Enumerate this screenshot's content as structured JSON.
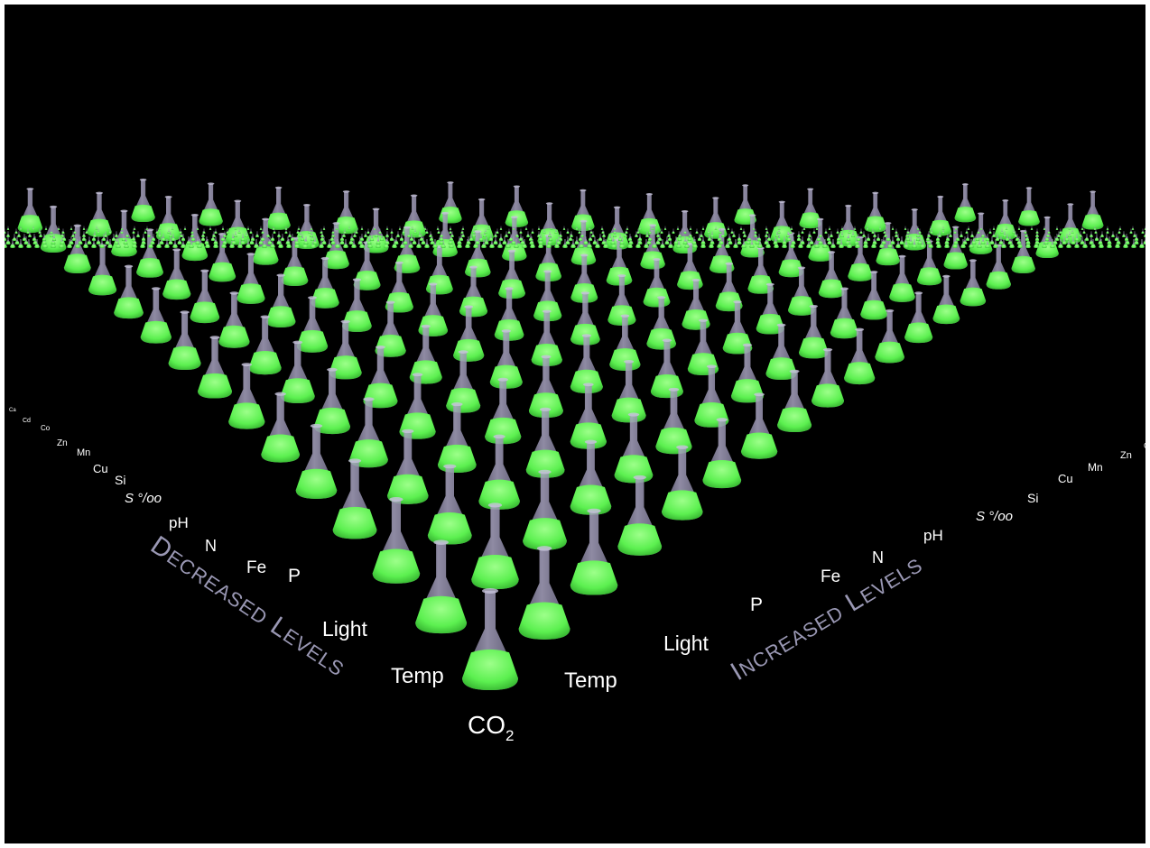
{
  "diagram": {
    "left_axis": {
      "title_initial_1": "D",
      "title_rest_1": "ECREASED",
      "title_initial_2": "L",
      "title_rest_2": "EVELS",
      "labels": [
        "Temp",
        "Light",
        "P",
        "Fe",
        "N",
        "pH",
        "S °/oo",
        "Si",
        "Cu",
        "Mn",
        "Zn",
        "Co",
        "Cd",
        "Ca"
      ]
    },
    "right_axis": {
      "title_initial_1": "I",
      "title_rest_1": "NCREASED",
      "title_initial_2": "L",
      "title_rest_2": "EVELS",
      "labels": [
        "Temp",
        "Light",
        "P",
        "Fe",
        "N",
        "pH",
        "S °/oo",
        "Si",
        "Cu",
        "Mn",
        "Zn",
        "C"
      ]
    },
    "center_label": {
      "main": "CO",
      "subscript": "2"
    },
    "colors": {
      "background": "#000000",
      "liquid": "#5cf050",
      "glass": "#8f8aa8",
      "label_text": "#ffffff",
      "axis_title": "#9a98b4"
    },
    "icon": "erlenmeyer-flask-icon"
  }
}
